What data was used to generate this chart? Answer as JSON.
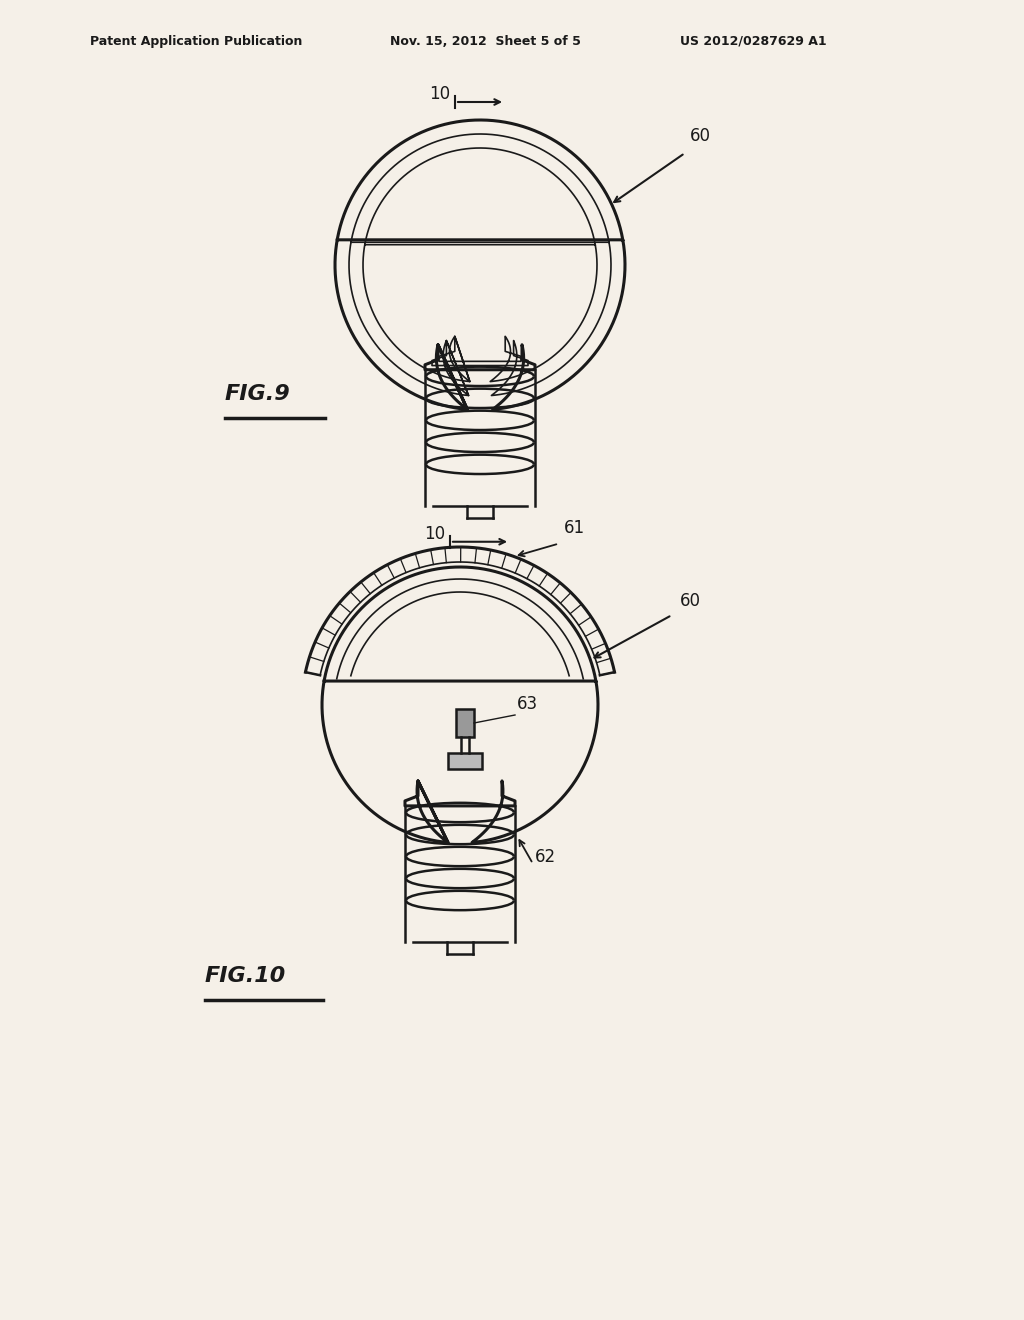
{
  "bg_color": "#f5f0e8",
  "line_color": "#1a1a1a",
  "header_text": "Patent Application Publication",
  "header_date": "Nov. 15, 2012  Sheet 5 of 5",
  "header_patent": "US 2012/0287629 A1",
  "fig9_label": "FIG.9",
  "fig10_label": "FIG.10",
  "label_10": "10",
  "label_60": "60",
  "label_61": "61",
  "label_62": "62",
  "label_63": "63"
}
